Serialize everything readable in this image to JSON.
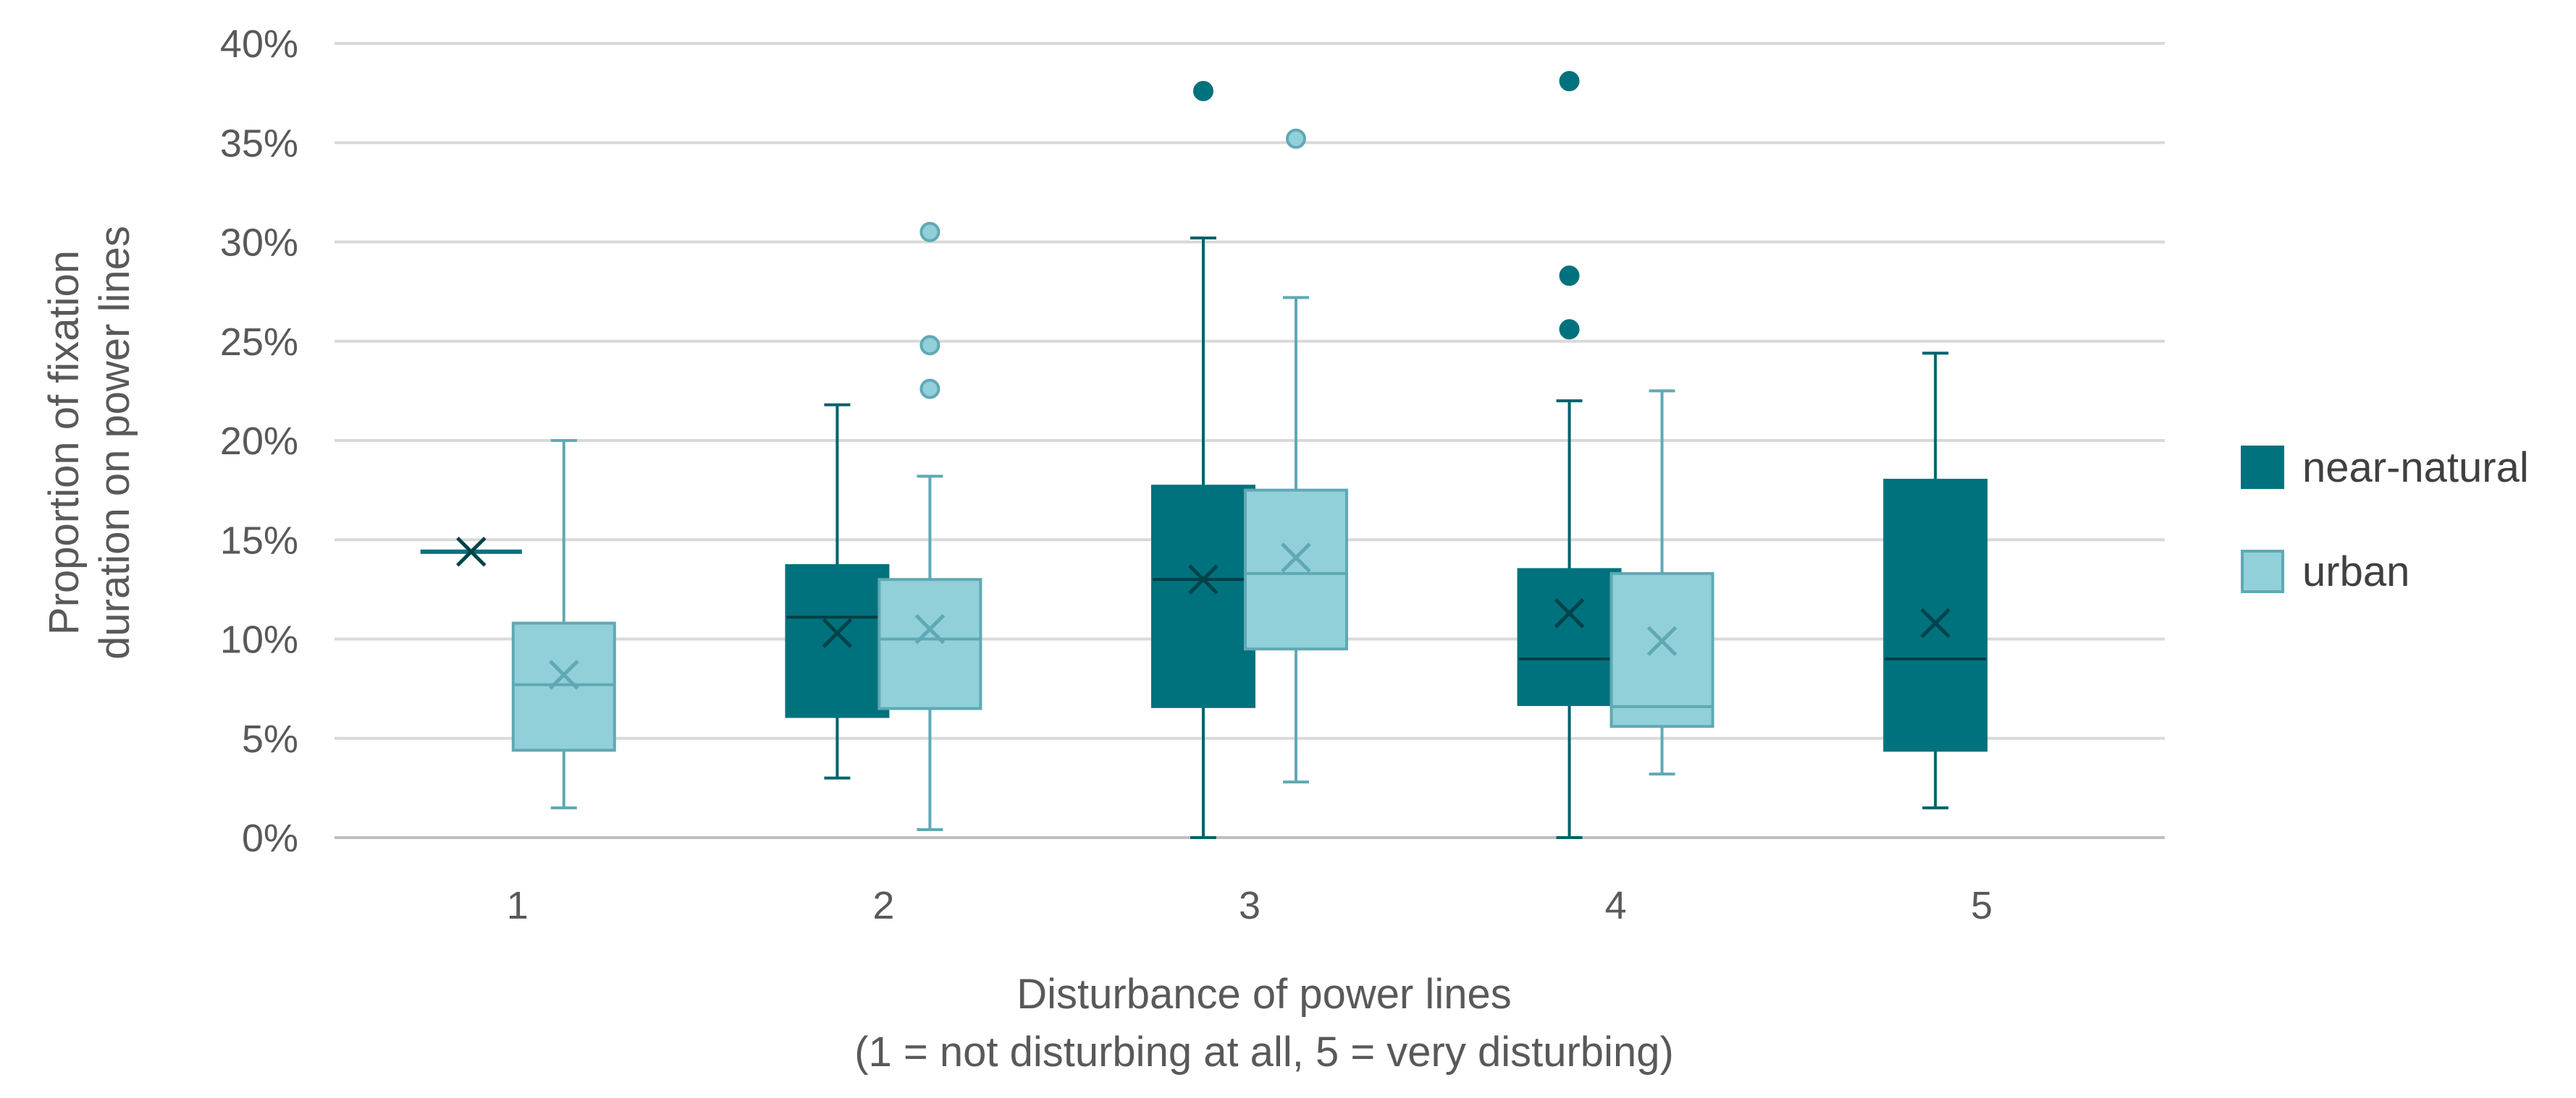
{
  "chart_data": {
    "type": "boxplot",
    "title": "",
    "ylabel_lines": [
      "Proportion of fixation",
      "duration on power lines"
    ],
    "xlabel_lines": [
      "Disturbance of power lines",
      "(1 = not disturbing at all, 5 = very disturbing)"
    ],
    "categories": [
      "1",
      "2",
      "3",
      "4",
      "5"
    ],
    "ylim": [
      0,
      40
    ],
    "yticks": [
      0,
      5,
      10,
      15,
      20,
      25,
      30,
      35,
      40
    ],
    "ytick_labels": [
      "0%",
      "5%",
      "10%",
      "15%",
      "20%",
      "25%",
      "30%",
      "35%",
      "40%"
    ],
    "grid": true,
    "legend_position": "right",
    "series": [
      {
        "name": "near-natural",
        "color": "#00727D",
        "boxes": [
          {
            "category": "1",
            "min": 14.4,
            "q1": 14.4,
            "median": 14.4,
            "q3": 14.4,
            "max": 14.4,
            "mean": 14.4,
            "outliers": []
          },
          {
            "category": "2",
            "min": 3.0,
            "q1": 6.1,
            "median": 11.1,
            "q3": 13.7,
            "max": 21.8,
            "mean": 10.3,
            "outliers": []
          },
          {
            "category": "3",
            "min": 0.0,
            "q1": 6.6,
            "median": 13.0,
            "q3": 17.7,
            "max": 30.2,
            "mean": 13.0,
            "outliers": [
              37.6
            ]
          },
          {
            "category": "4",
            "min": 0.0,
            "q1": 6.7,
            "median": 9.0,
            "q3": 13.5,
            "max": 22.0,
            "mean": 11.3,
            "outliers": [
              38.1,
              28.3,
              25.6
            ]
          },
          {
            "category": "5",
            "min": 1.5,
            "q1": 4.4,
            "median": 9.0,
            "q3": 18.0,
            "max": 24.4,
            "mean": 10.8,
            "outliers": []
          }
        ]
      },
      {
        "name": "urban",
        "color": "#92D0D9",
        "stroke": "#5FA9B4",
        "boxes": [
          {
            "category": "1",
            "min": 1.5,
            "q1": 4.4,
            "median": 7.7,
            "q3": 10.8,
            "max": 20.0,
            "mean": 8.2,
            "outliers": []
          },
          {
            "category": "2",
            "min": 0.4,
            "q1": 6.5,
            "median": 10.0,
            "q3": 13.0,
            "max": 18.2,
            "mean": 10.5,
            "outliers": [
              30.5,
              24.8,
              22.6
            ]
          },
          {
            "category": "3",
            "min": 2.8,
            "q1": 9.5,
            "median": 13.3,
            "q3": 17.5,
            "max": 27.2,
            "mean": 14.1,
            "outliers": [
              35.2
            ]
          },
          {
            "category": "4",
            "min": 3.2,
            "q1": 5.6,
            "median": 6.6,
            "q3": 13.3,
            "max": 22.5,
            "mean": 9.9,
            "outliers": []
          }
        ]
      }
    ]
  }
}
